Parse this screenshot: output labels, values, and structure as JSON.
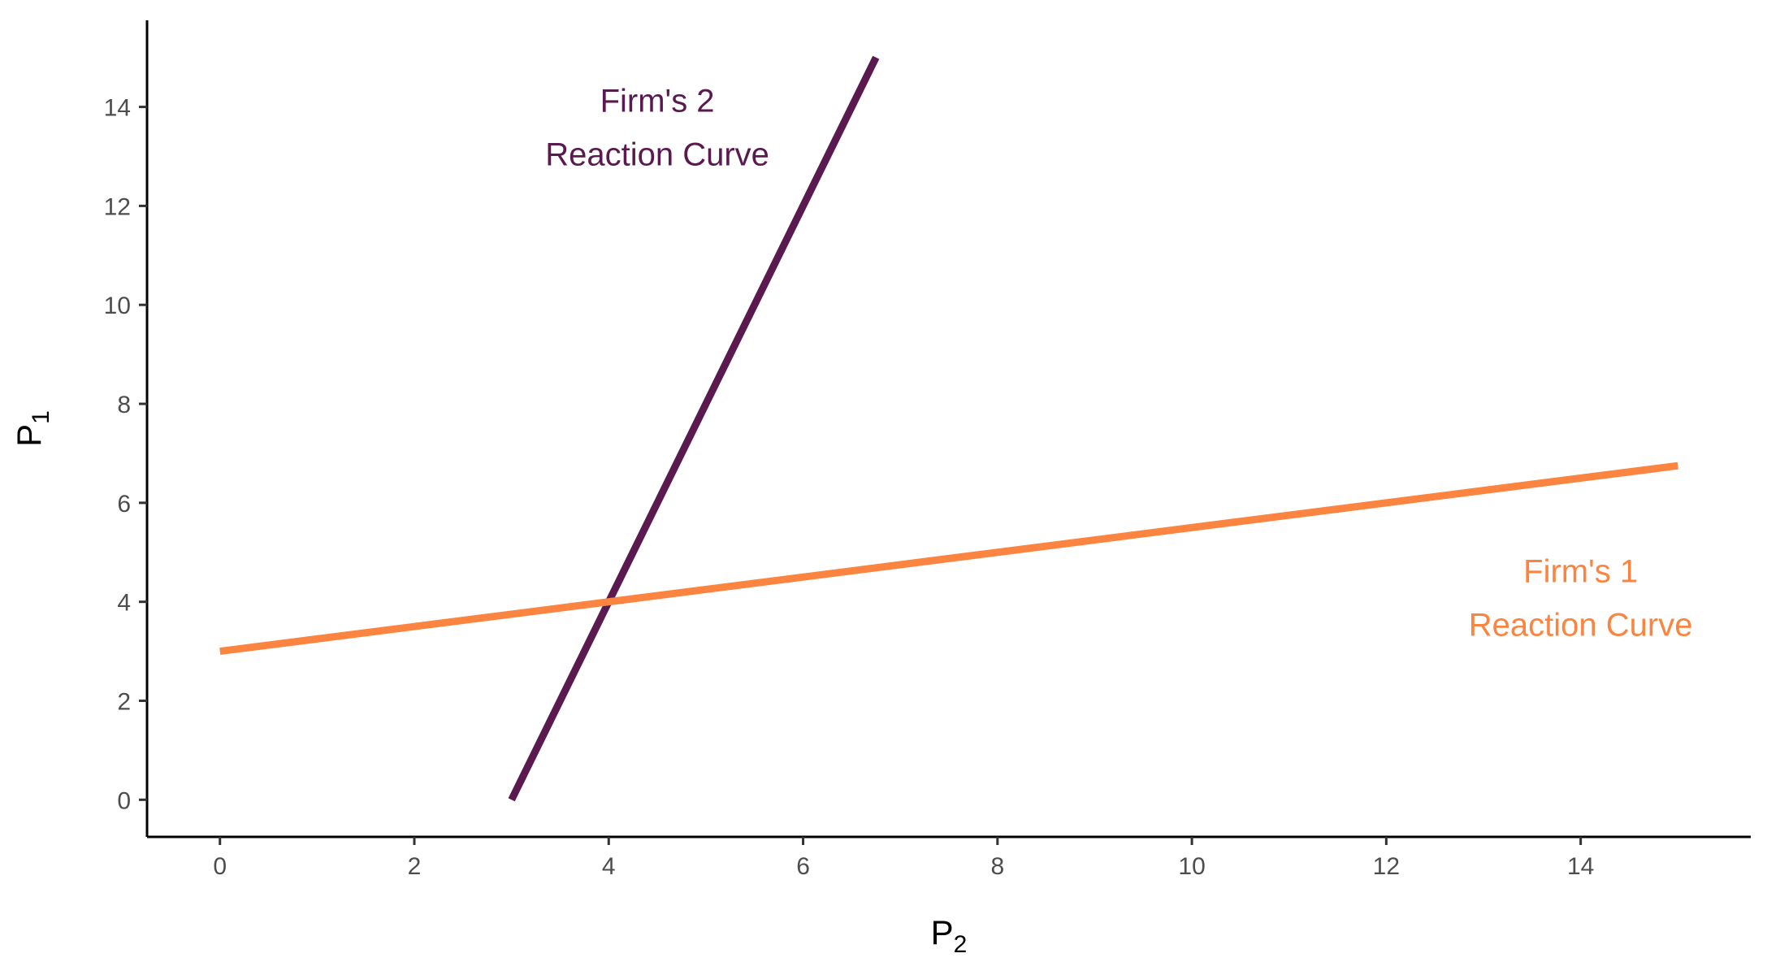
{
  "chart_data": {
    "type": "line",
    "xlabel": {
      "main": "P",
      "sub": "2"
    },
    "ylabel": {
      "main": "P",
      "sub": "1"
    },
    "xlim": [
      -0.75,
      15.75
    ],
    "ylim": [
      -0.75,
      15.75
    ],
    "x_ticks": [
      0,
      2,
      4,
      6,
      8,
      10,
      12,
      14
    ],
    "y_ticks": [
      0,
      2,
      4,
      6,
      8,
      10,
      12,
      14
    ],
    "grid": false,
    "series": [
      {
        "name": "Firm's 2 Reaction Curve",
        "color": "#5a1a4f",
        "points": [
          [
            3,
            0
          ],
          [
            6.75,
            15
          ]
        ]
      },
      {
        "name": "Firm's 1 Reaction Curve",
        "color": "#fb8440",
        "points": [
          [
            0,
            3
          ],
          [
            15,
            6.75
          ]
        ]
      }
    ],
    "annotations": [
      {
        "lines": [
          "Firm's 2",
          "Reaction Curve"
        ],
        "x": 4.5,
        "y": 13.9,
        "color": "#5a1a4f"
      },
      {
        "lines": [
          "Firm's 1",
          "Reaction Curve"
        ],
        "x": 14,
        "y": 4.4,
        "color": "#fb8440"
      }
    ]
  }
}
